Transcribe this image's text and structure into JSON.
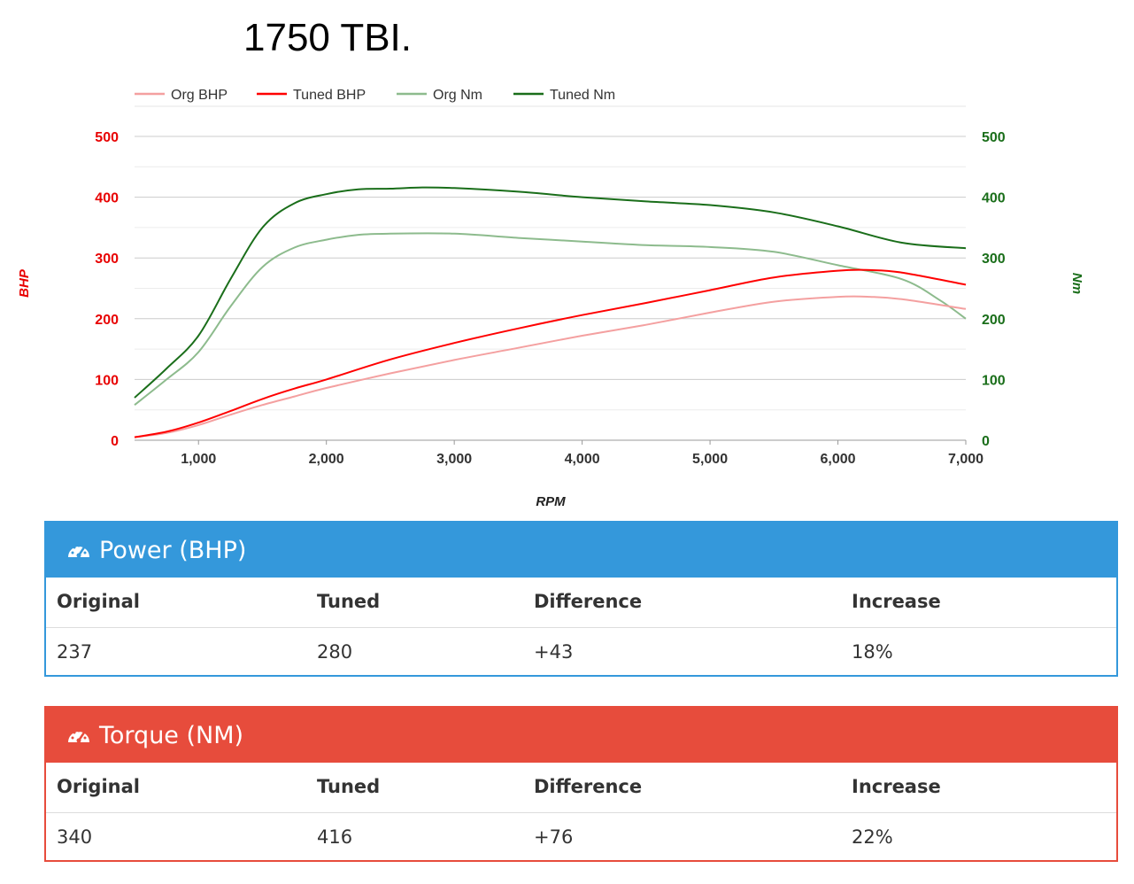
{
  "title": "1750 TBI.",
  "chart_data": {
    "type": "line",
    "xlabel": "RPM",
    "ylabel_left": "BHP",
    "ylabel_right": "Nm",
    "xlim": [
      500,
      7000
    ],
    "ylim_left": [
      0,
      500
    ],
    "ylim_right": [
      0,
      500
    ],
    "x_ticks": [
      "1,000",
      "2,000",
      "3,000",
      "4,000",
      "5,000",
      "6,000",
      "7,000"
    ],
    "y_ticks_left": [
      "500",
      "400",
      "300",
      "200",
      "100",
      "0"
    ],
    "y_ticks_right": [
      "500",
      "400",
      "300",
      "200",
      "100",
      "0"
    ],
    "legend_position": "top-left",
    "grid": true,
    "series": [
      {
        "name": "Org BHP",
        "axis": "left",
        "color": "#f4a0a0",
        "x": [
          500,
          750,
          1000,
          1250,
          1500,
          1750,
          2000,
          2500,
          3000,
          3500,
          4000,
          4500,
          5000,
          5500,
          6000,
          6250,
          6500,
          7000
        ],
        "y": [
          5,
          12,
          25,
          42,
          58,
          72,
          86,
          110,
          132,
          152,
          172,
          190,
          210,
          228,
          236,
          236,
          232,
          216
        ]
      },
      {
        "name": "Tuned BHP",
        "axis": "left",
        "color": "#ff0000",
        "x": [
          500,
          750,
          1000,
          1250,
          1500,
          1750,
          2000,
          2500,
          3000,
          3500,
          4000,
          4500,
          5000,
          5500,
          6000,
          6250,
          6500,
          7000
        ],
        "y": [
          5,
          14,
          29,
          48,
          68,
          85,
          100,
          133,
          160,
          184,
          206,
          226,
          247,
          268,
          279,
          280,
          276,
          256
        ]
      },
      {
        "name": "Org Nm",
        "axis": "right",
        "color": "#8dbb8d",
        "x": [
          500,
          750,
          1000,
          1250,
          1500,
          1750,
          2000,
          2250,
          2500,
          3000,
          3500,
          4000,
          4500,
          5000,
          5500,
          6000,
          6500,
          6800,
          7000
        ],
        "y": [
          58,
          100,
          145,
          220,
          285,
          317,
          330,
          338,
          340,
          340,
          333,
          327,
          321,
          318,
          310,
          288,
          265,
          230,
          200
        ]
      },
      {
        "name": "Tuned Nm",
        "axis": "right",
        "color": "#1a6e1a",
        "x": [
          500,
          750,
          1000,
          1250,
          1500,
          1750,
          2000,
          2250,
          2500,
          2750,
          3000,
          3500,
          4000,
          4500,
          5000,
          5500,
          6000,
          6500,
          7000
        ],
        "y": [
          70,
          118,
          172,
          265,
          350,
          390,
          405,
          413,
          414,
          416,
          415,
          409,
          400,
          393,
          387,
          375,
          352,
          325,
          316
        ]
      }
    ]
  },
  "power": {
    "header": "Power (BHP)",
    "color": "#3498db",
    "cols": [
      "Original",
      "Tuned",
      "Difference",
      "Increase"
    ],
    "values": [
      "237",
      "280",
      "+43",
      "18%"
    ]
  },
  "torque": {
    "header": "Torque (NM)",
    "color": "#e74c3c",
    "cols": [
      "Original",
      "Tuned",
      "Difference",
      "Increase"
    ],
    "values": [
      "340",
      "416",
      "+76",
      "22%"
    ]
  },
  "icons": {
    "panel_icon": "tachometer-icon"
  },
  "colors": {
    "left_axis": "#e80000",
    "right_axis": "#1a6e1a",
    "grid": "#cccccc"
  }
}
